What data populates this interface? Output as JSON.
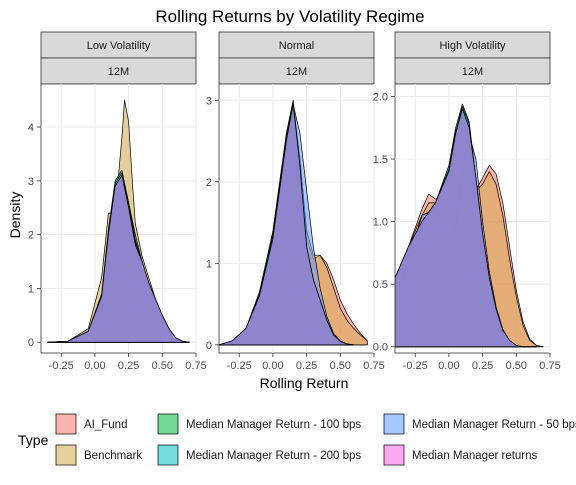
{
  "chart_data": {
    "type": "area",
    "title": "Rolling Returns by Volatility Regime",
    "xlabel": "Rolling Return",
    "ylabel": "Density",
    "legend": {
      "title": "Type",
      "position": "bottom",
      "entries": [
        {
          "name": "AI_Fund",
          "color": "#F8766D"
        },
        {
          "name": "Benchmark",
          "color": "#B79F00"
        },
        {
          "name": "Median Manager Return - 100 bps",
          "color": "#00BA38"
        },
        {
          "name": "Median Manager Return - 200 bps",
          "color": "#00BFC4"
        },
        {
          "name": "Median Manager Return - 50 bps",
          "color": "#619CFF"
        },
        {
          "name": "Median Manager returns",
          "color": "#F564E3"
        }
      ]
    },
    "colors": {
      "panel_bg": "#FFFFFF",
      "grid": "#EBEBEB",
      "strip_bg": "#D9D9D9",
      "overlap_fill": "#9B7FD4",
      "benchmark_fill": "#D4A84B"
    },
    "panels": [
      {
        "regime": "Low Volatility",
        "window": "12M",
        "xlim": [
          -0.4,
          0.75
        ],
        "ylim": [
          -0.2,
          4.8
        ],
        "xticks": [
          "-0.25",
          "0.00",
          "0.25",
          "0.50",
          "0.75"
        ],
        "yticks": [
          "0",
          "1",
          "2",
          "3",
          "4"
        ],
        "series": [
          {
            "name": "AI_Fund",
            "x": [
              -0.35,
              -0.2,
              -0.05,
              0.05,
              0.1,
              0.15,
              0.2,
              0.25,
              0.3,
              0.35,
              0.4,
              0.45,
              0.5,
              0.55,
              0.6,
              0.65,
              0.7
            ],
            "y": [
              0,
              0.02,
              0.2,
              0.8,
              2.0,
              2.9,
              3.1,
              2.4,
              1.8,
              1.5,
              1.1,
              0.8,
              0.5,
              0.25,
              0.08,
              0.02,
              0
            ]
          },
          {
            "name": "Benchmark",
            "x": [
              -0.35,
              -0.2,
              -0.05,
              0.05,
              0.1,
              0.15,
              0.2,
              0.22,
              0.25,
              0.28,
              0.3,
              0.35,
              0.4,
              0.45,
              0.5,
              0.55,
              0.6,
              0.65,
              0.7
            ],
            "y": [
              0,
              0.02,
              0.25,
              1.2,
              2.4,
              2.4,
              3.8,
              4.5,
              4.1,
              2.9,
              2.2,
              1.6,
              1.2,
              0.8,
              0.5,
              0.22,
              0.06,
              0.01,
              0
            ]
          },
          {
            "name": "Median Manager Return - 100 bps",
            "x": [
              -0.35,
              -0.2,
              -0.05,
              0.05,
              0.1,
              0.15,
              0.2,
              0.25,
              0.3,
              0.35,
              0.4,
              0.45,
              0.5,
              0.55,
              0.6,
              0.65,
              0.7
            ],
            "y": [
              0,
              0.02,
              0.2,
              0.9,
              2.1,
              3.0,
              3.2,
              2.6,
              1.9,
              1.5,
              1.1,
              0.8,
              0.5,
              0.25,
              0.08,
              0.02,
              0
            ]
          },
          {
            "name": "Median Manager Return - 200 bps",
            "x": [
              -0.35,
              -0.2,
              -0.05,
              0.05,
              0.1,
              0.15,
              0.2,
              0.25,
              0.3,
              0.35,
              0.4,
              0.45,
              0.5,
              0.55,
              0.6,
              0.65,
              0.7
            ],
            "y": [
              0,
              0.02,
              0.2,
              0.85,
              2.0,
              2.95,
              3.15,
              2.5,
              1.85,
              1.5,
              1.1,
              0.8,
              0.5,
              0.25,
              0.08,
              0.02,
              0
            ]
          },
          {
            "name": "Median Manager Return - 50 bps",
            "x": [
              -0.35,
              -0.2,
              -0.05,
              0.05,
              0.1,
              0.15,
              0.2,
              0.25,
              0.3,
              0.35,
              0.4,
              0.45,
              0.5,
              0.55,
              0.6,
              0.65,
              0.7
            ],
            "y": [
              0,
              0.02,
              0.2,
              0.85,
              2.0,
              2.9,
              3.1,
              2.6,
              2.0,
              1.5,
              1.05,
              0.75,
              0.45,
              0.22,
              0.07,
              0.02,
              0
            ]
          },
          {
            "name": "Median Manager returns",
            "x": [
              -0.35,
              -0.2,
              -0.05,
              0.05,
              0.1,
              0.15,
              0.2,
              0.25,
              0.3,
              0.35,
              0.4,
              0.45,
              0.5,
              0.55,
              0.6,
              0.65,
              0.7
            ],
            "y": [
              0,
              0.02,
              0.2,
              0.85,
              2.0,
              2.9,
              3.1,
              2.5,
              1.8,
              1.5,
              1.1,
              0.8,
              0.5,
              0.25,
              0.08,
              0.02,
              0
            ]
          }
        ]
      },
      {
        "regime": "Normal",
        "window": "12M",
        "xlim": [
          -0.4,
          0.75
        ],
        "ylim": [
          -0.1,
          3.2
        ],
        "xticks": [
          "-0.25",
          "0.00",
          "0.25",
          "0.50",
          "0.75"
        ],
        "yticks": [
          "0",
          "1",
          "2",
          "3"
        ],
        "series": [
          {
            "name": "AI_Fund",
            "x": [
              -0.4,
              -0.3,
              -0.2,
              -0.1,
              0.0,
              0.1,
              0.15,
              0.2,
              0.25,
              0.3,
              0.35,
              0.4,
              0.45,
              0.5,
              0.55,
              0.6,
              0.65,
              0.7
            ],
            "y": [
              0,
              0.05,
              0.2,
              0.6,
              1.3,
              2.5,
              2.9,
              2.2,
              1.3,
              1.05,
              1.1,
              1.0,
              0.8,
              0.55,
              0.38,
              0.25,
              0.14,
              0.05
            ]
          },
          {
            "name": "Benchmark",
            "x": [
              -0.4,
              -0.3,
              -0.2,
              -0.1,
              0.0,
              0.1,
              0.15,
              0.2,
              0.25,
              0.3,
              0.35,
              0.4,
              0.45,
              0.5,
              0.55,
              0.6,
              0.65,
              0.7
            ],
            "y": [
              0,
              0.05,
              0.2,
              0.6,
              1.3,
              2.5,
              2.95,
              2.3,
              1.4,
              1.1,
              1.1,
              0.95,
              0.7,
              0.45,
              0.3,
              0.2,
              0.12,
              0.05
            ]
          },
          {
            "name": "Median Manager Return - 100 bps",
            "x": [
              -0.4,
              -0.3,
              -0.2,
              -0.1,
              0.0,
              0.1,
              0.15,
              0.2,
              0.25,
              0.3,
              0.35,
              0.4,
              0.45,
              0.5,
              0.55,
              0.6
            ],
            "y": [
              0,
              0.05,
              0.2,
              0.65,
              1.4,
              2.6,
              3.0,
              2.2,
              1.2,
              0.8,
              0.55,
              0.3,
              0.12,
              0.04,
              0.01,
              0
            ]
          },
          {
            "name": "Median Manager Return - 200 bps",
            "x": [
              -0.4,
              -0.3,
              -0.2,
              -0.1,
              0.0,
              0.1,
              0.15,
              0.2,
              0.25,
              0.3,
              0.35,
              0.4,
              0.45,
              0.5,
              0.55,
              0.6
            ],
            "y": [
              0,
              0.05,
              0.2,
              0.62,
              1.35,
              2.55,
              2.98,
              2.2,
              1.2,
              0.8,
              0.55,
              0.3,
              0.12,
              0.04,
              0.01,
              0
            ]
          },
          {
            "name": "Median Manager Return - 50 bps",
            "x": [
              -0.4,
              -0.3,
              -0.2,
              -0.1,
              0.0,
              0.1,
              0.15,
              0.2,
              0.25,
              0.3,
              0.35,
              0.4,
              0.45,
              0.5,
              0.55,
              0.6
            ],
            "y": [
              0,
              0.05,
              0.2,
              0.6,
              1.35,
              2.5,
              2.95,
              2.6,
              1.9,
              1.2,
              0.7,
              0.35,
              0.14,
              0.05,
              0.01,
              0
            ]
          },
          {
            "name": "Median Manager returns",
            "x": [
              -0.4,
              -0.3,
              -0.2,
              -0.1,
              0.0,
              0.1,
              0.15,
              0.2,
              0.25,
              0.3,
              0.35,
              0.4,
              0.45,
              0.5,
              0.55,
              0.6
            ],
            "y": [
              0,
              0.05,
              0.2,
              0.6,
              1.3,
              2.5,
              2.95,
              2.2,
              1.2,
              0.8,
              0.55,
              0.3,
              0.12,
              0.04,
              0.01,
              0
            ]
          }
        ]
      },
      {
        "regime": "High Volatility",
        "window": "12M",
        "xlim": [
          -0.4,
          0.75
        ],
        "ylim": [
          -0.05,
          2.1
        ],
        "xticks": [
          "-0.25",
          "0.00",
          "0.25",
          "0.50",
          "0.75"
        ],
        "yticks": [
          "0.0",
          "0.5",
          "1.0",
          "1.5",
          "2.0"
        ],
        "series": [
          {
            "name": "AI_Fund",
            "x": [
              -0.4,
              -0.3,
              -0.2,
              -0.15,
              -0.1,
              -0.05,
              0.0,
              0.05,
              0.1,
              0.15,
              0.2,
              0.25,
              0.3,
              0.35,
              0.4,
              0.45,
              0.5,
              0.55,
              0.6,
              0.65,
              0.7
            ],
            "y": [
              0.55,
              0.8,
              1.1,
              1.22,
              1.18,
              1.2,
              1.35,
              1.6,
              1.8,
              1.6,
              1.25,
              1.35,
              1.45,
              1.38,
              1.15,
              0.8,
              0.45,
              0.2,
              0.06,
              0.01,
              0
            ]
          },
          {
            "name": "Benchmark",
            "x": [
              -0.4,
              -0.3,
              -0.2,
              -0.15,
              -0.1,
              -0.05,
              0.0,
              0.05,
              0.1,
              0.15,
              0.2,
              0.25,
              0.3,
              0.35,
              0.4,
              0.45,
              0.5,
              0.55,
              0.6,
              0.65,
              0.7
            ],
            "y": [
              0.55,
              0.8,
              1.05,
              1.15,
              1.15,
              1.2,
              1.35,
              1.65,
              1.85,
              1.65,
              1.25,
              1.3,
              1.4,
              1.3,
              1.05,
              0.7,
              0.4,
              0.17,
              0.05,
              0.01,
              0
            ]
          },
          {
            "name": "Median Manager Return - 100 bps",
            "x": [
              -0.4,
              -0.3,
              -0.2,
              -0.1,
              0.0,
              0.05,
              0.1,
              0.15,
              0.2,
              0.25,
              0.3,
              0.35,
              0.4,
              0.45,
              0.5,
              0.55,
              0.6,
              0.65
            ],
            "y": [
              0.55,
              0.8,
              1.0,
              1.15,
              1.45,
              1.75,
              1.94,
              1.8,
              1.35,
              0.9,
              0.55,
              0.3,
              0.13,
              0.05,
              0.01,
              0,
              0,
              0
            ]
          },
          {
            "name": "Median Manager Return - 200 bps",
            "x": [
              -0.4,
              -0.3,
              -0.2,
              -0.1,
              0.0,
              0.05,
              0.1,
              0.15,
              0.2,
              0.25,
              0.3,
              0.35,
              0.4,
              0.45,
              0.5,
              0.55,
              0.6,
              0.65
            ],
            "y": [
              0.55,
              0.8,
              1.0,
              1.15,
              1.42,
              1.72,
              1.92,
              1.78,
              1.35,
              0.9,
              0.55,
              0.3,
              0.13,
              0.05,
              0.01,
              0,
              0,
              0
            ]
          },
          {
            "name": "Median Manager Return - 50 bps",
            "x": [
              -0.4,
              -0.3,
              -0.2,
              -0.1,
              -0.05,
              0.0,
              0.05,
              0.1,
              0.15,
              0.2,
              0.25,
              0.3,
              0.35,
              0.4,
              0.45,
              0.5,
              0.55,
              0.6,
              0.65
            ],
            "y": [
              0.3,
              0.7,
              1.05,
              1.1,
              0.95,
              0.85,
              0.95,
              1.4,
              1.7,
              1.5,
              1.0,
              0.6,
              0.32,
              0.14,
              0.05,
              0.01,
              0,
              0,
              0
            ]
          },
          {
            "name": "Median Manager returns",
            "x": [
              -0.4,
              -0.3,
              -0.2,
              -0.1,
              0.0,
              0.05,
              0.1,
              0.15,
              0.2,
              0.25,
              0.3,
              0.35,
              0.4,
              0.45,
              0.5,
              0.55,
              0.6,
              0.65
            ],
            "y": [
              0.55,
              0.8,
              1.0,
              1.15,
              1.4,
              1.7,
              1.9,
              1.75,
              1.35,
              0.9,
              0.55,
              0.3,
              0.13,
              0.05,
              0.01,
              0,
              0,
              0
            ]
          }
        ]
      }
    ]
  }
}
